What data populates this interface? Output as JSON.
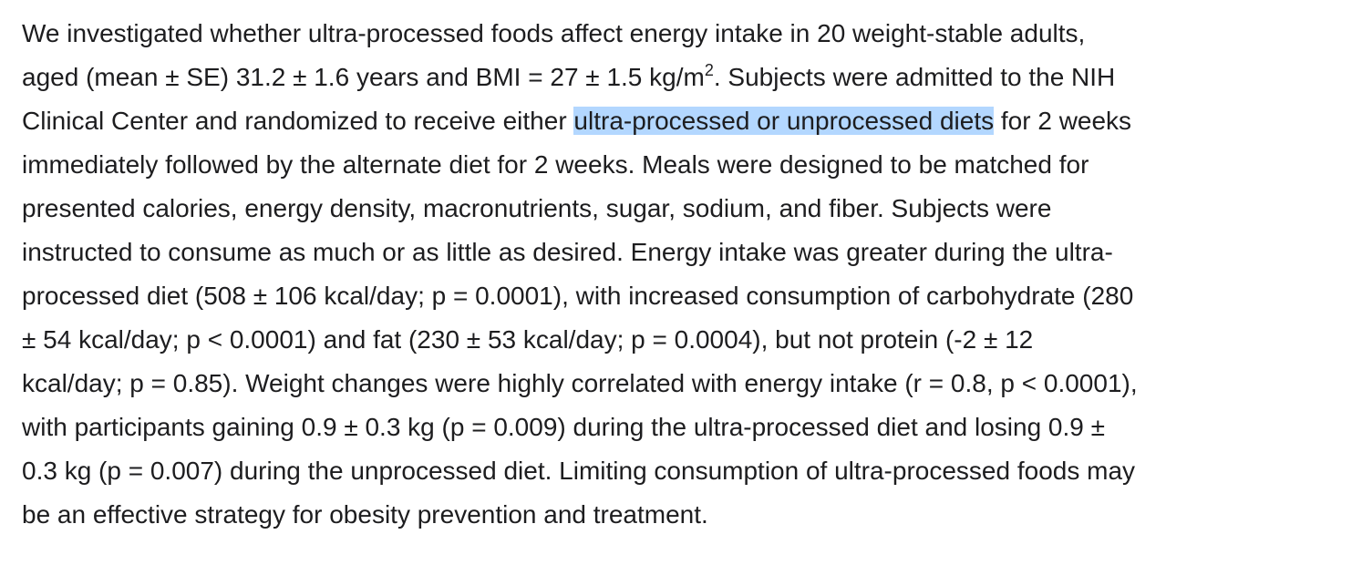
{
  "paragraph": {
    "lines": [
      [
        "We investigated whether ultra-processed foods affect energy intake in 20 weight-stable adults,"
      ],
      [
        "aged (mean ± SE) 31.2 ± 1.6 years and BMI = 27 ± 1.5 kg/m",
        "2",
        ". Subjects were admitted to the NIH"
      ],
      [
        "Clinical Center and randomized to receive either ",
        "ultra-processed or unprocessed diets",
        " for 2 weeks"
      ],
      [
        "immediately followed by the alternate diet for 2 weeks. Meals were designed to be matched for"
      ],
      [
        "presented calories, energy density, macronutrients, sugar, sodium, and fiber. Subjects were"
      ],
      [
        "instructed to consume as much or as little as desired. Energy intake was greater during the ultra-"
      ],
      [
        "processed diet (508 ± 106 kcal/day; p = 0.0001), with increased consumption of carbohydrate (280"
      ],
      [
        "± 54 kcal/day; p < 0.0001) and fat (230 ± 53 kcal/day; p = 0.0004), but not protein (-2 ± 12"
      ],
      [
        "kcal/day; p = 0.85). Weight changes were highly correlated with energy intake (r = 0.8, p < 0.0001),"
      ],
      [
        "with participants gaining 0.9 ± 0.3 kg (p = 0.009) during the ultra-processed diet and losing 0.9 ±"
      ],
      [
        "0.3 kg (p = 0.007) during the unprocessed diet. Limiting consumption of ultra-processed foods may"
      ],
      [
        "be an effective strategy for obesity prevention and treatment."
      ]
    ]
  }
}
